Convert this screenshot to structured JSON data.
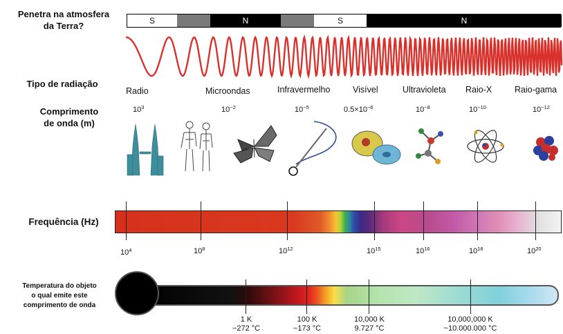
{
  "atmosphere": {
    "label_line1": "Penetra na atmosfera",
    "label_line2": "da Terra?",
    "segments": [
      {
        "text": "S",
        "color": "#ffffff"
      },
      {
        "text": "",
        "color": "#7a7a7a"
      },
      {
        "text": "N",
        "color": "#000000"
      },
      {
        "text": "",
        "color": "#7a7a7a"
      },
      {
        "text": "S",
        "color": "#ffffff"
      },
      {
        "text": "N",
        "color": "#000000"
      }
    ]
  },
  "radiation": {
    "label": "Tipo de radiação",
    "types": [
      "Radio",
      "Microondas",
      "Infravermelho",
      "Visível",
      "Ultravioleta",
      "Raio-X",
      "Raio-gama"
    ]
  },
  "wavelength": {
    "label_line1": "Comprimento",
    "label_line2": "de onda (m)",
    "values": [
      {
        "base": "10",
        "exp": "3"
      },
      {
        "base": "10",
        "exp": "−2"
      },
      {
        "base": "10",
        "exp": "−5"
      },
      {
        "base": "0.5×10",
        "exp": "−6"
      },
      {
        "base": "10",
        "exp": "−8"
      },
      {
        "base": "10",
        "exp": "−10"
      },
      {
        "base": "10",
        "exp": "−12"
      }
    ],
    "icons": [
      "towers-icon",
      "humans-icon",
      "butterfly-icon",
      "needle-icon",
      "cell-icon",
      "molecule-icon",
      "atom-icon",
      "nucleus-icon"
    ]
  },
  "frequency": {
    "label": "Frequência (Hz)",
    "ticks": [
      {
        "base": "10",
        "exp": "4"
      },
      {
        "base": "10",
        "exp": "8"
      },
      {
        "base": "10",
        "exp": "12"
      },
      {
        "base": "10",
        "exp": "15"
      },
      {
        "base": "10",
        "exp": "16"
      },
      {
        "base": "10",
        "exp": "18"
      },
      {
        "base": "10",
        "exp": "20"
      }
    ]
  },
  "temperature": {
    "label_line1": "Temperatura do objeto",
    "label_line2": "o qual emite este",
    "label_line3": "comprimento de onda",
    "ticks": [
      {
        "k": "1 K",
        "c": "−272 °C"
      },
      {
        "k": "100 K",
        "c": "−173 °C"
      },
      {
        "k": "10,000 K",
        "c": "9.727 °C"
      },
      {
        "k": "10,000,000 K",
        "c": "~10.000.000 °C"
      }
    ]
  },
  "colors": {
    "wave": "#d8312b",
    "radio_band": "#d9381e",
    "accent_visible": "#5b2c83"
  }
}
